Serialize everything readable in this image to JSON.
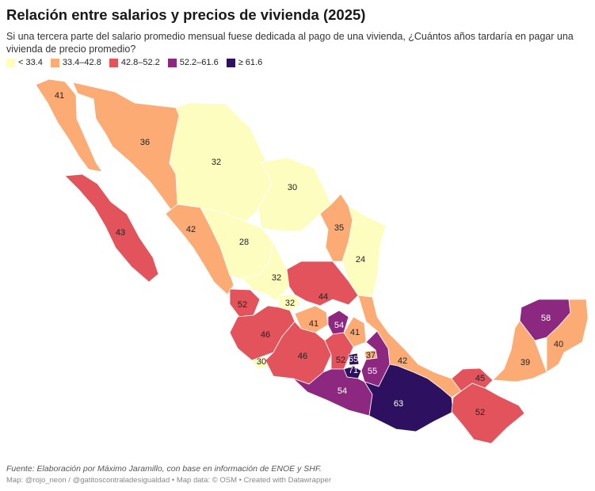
{
  "header": {
    "title": "Relación entre salarios y precios de vivienda (2025)",
    "subtitle": "Si una tercera parte del salario promedio mensual fuese dedicada al pago de una vivienda, ¿Cuántos años tardaría en pagar una vivienda de precio promedio?"
  },
  "legend": [
    {
      "label": "< 33.4",
      "color": "#fcfdbf"
    },
    {
      "label": "33.4–42.8",
      "color": "#fcab75"
    },
    {
      "label": "42.8–52.2",
      "color": "#e3535b"
    },
    {
      "label": "52.2–61.6",
      "color": "#8c287f"
    },
    {
      "label": "≥ 61.6",
      "color": "#2d1160"
    }
  ],
  "map": {
    "regions": [
      {
        "name": "Baja California",
        "value": 41
      },
      {
        "name": "Sonora",
        "value": 36
      },
      {
        "name": "Baja California Sur",
        "value": 43
      },
      {
        "name": "Chihuahua",
        "value": 32
      },
      {
        "name": "Coahuila",
        "value": 30
      },
      {
        "name": "Sinaloa",
        "value": 42
      },
      {
        "name": "Durango",
        "value": 28
      },
      {
        "name": "Nuevo León",
        "value": 35
      },
      {
        "name": "Tamaulipas",
        "value": 24
      },
      {
        "name": "Zacatecas",
        "value": 32
      },
      {
        "name": "Aguascalientes",
        "value": 32
      },
      {
        "name": "San Luis Potosí",
        "value": 44
      },
      {
        "name": "Nayarit",
        "value": 52
      },
      {
        "name": "Jalisco",
        "value": 46
      },
      {
        "name": "Guanajuato",
        "value": 41
      },
      {
        "name": "Querétaro",
        "value": 54
      },
      {
        "name": "Hidalgo",
        "value": 41
      },
      {
        "name": "Colima",
        "value": 30
      },
      {
        "name": "Michoacán",
        "value": 46
      },
      {
        "name": "Estado de México",
        "value": 52
      },
      {
        "name": "Ciudad de México",
        "value": 65
      },
      {
        "name": "Morelos",
        "value": 71
      },
      {
        "name": "Tlaxcala",
        "value": 37
      },
      {
        "name": "Puebla",
        "value": 55
      },
      {
        "name": "Veracruz",
        "value": 42
      },
      {
        "name": "Guerrero",
        "value": 54
      },
      {
        "name": "Oaxaca",
        "value": 63
      },
      {
        "name": "Tabasco",
        "value": 45
      },
      {
        "name": "Chiapas",
        "value": 52
      },
      {
        "name": "Campeche",
        "value": 39
      },
      {
        "name": "Yucatán",
        "value": 58
      },
      {
        "name": "Quintana Roo",
        "value": 40
      }
    ]
  },
  "footer": {
    "source": "Fuente: Elaboración por Máximo Jaramillo, con base en información de ENOE y SHF.",
    "credits": "Map: @rojo_neon / @gatitoscontraladesigualdad • Map data: © OSM  • Created with Datawrapper"
  }
}
